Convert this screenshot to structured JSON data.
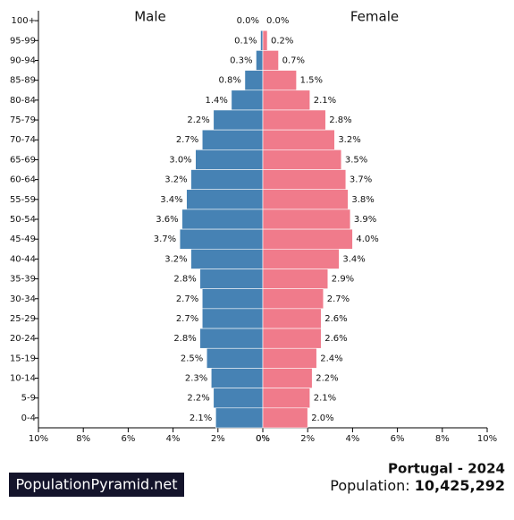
{
  "chart_data": {
    "type": "pyramid",
    "title": "Portugal - 2024",
    "population_label": "Population:",
    "population": "10,425,292",
    "brand": "PopulationPyramid.net",
    "categories": [
      "100+",
      "95-99",
      "90-94",
      "85-89",
      "80-84",
      "75-79",
      "70-74",
      "65-69",
      "60-64",
      "55-59",
      "50-54",
      "45-49",
      "40-44",
      "35-39",
      "30-34",
      "25-29",
      "20-24",
      "15-19",
      "10-14",
      "5-9",
      "0-4"
    ],
    "series": [
      {
        "name": "Male",
        "color": "#4682b4",
        "side": "left",
        "values": [
          0.0,
          0.1,
          0.3,
          0.8,
          1.4,
          2.2,
          2.7,
          3.0,
          3.2,
          3.4,
          3.6,
          3.7,
          3.2,
          2.8,
          2.7,
          2.7,
          2.8,
          2.5,
          2.3,
          2.2,
          2.1
        ],
        "value_labels": [
          "0.0%",
          "0.1%",
          "0.3%",
          "0.8%",
          "1.4%",
          "2.2%",
          "2.7%",
          "3.0%",
          "3.2%",
          "3.4%",
          "3.6%",
          "3.7%",
          "3.2%",
          "2.8%",
          "2.7%",
          "2.7%",
          "2.8%",
          "2.5%",
          "2.3%",
          "2.2%",
          "2.1%"
        ]
      },
      {
        "name": "Female",
        "color": "#f07b8b",
        "side": "right",
        "values": [
          0.0,
          0.2,
          0.7,
          1.5,
          2.1,
          2.8,
          3.2,
          3.5,
          3.7,
          3.8,
          3.9,
          4.0,
          3.4,
          2.9,
          2.7,
          2.6,
          2.6,
          2.4,
          2.2,
          2.1,
          2.0
        ],
        "value_labels": [
          "0.0%",
          "0.2%",
          "0.7%",
          "1.5%",
          "2.1%",
          "2.8%",
          "3.2%",
          "3.5%",
          "3.7%",
          "3.8%",
          "3.9%",
          "4.0%",
          "3.4%",
          "2.9%",
          "2.7%",
          "2.6%",
          "2.6%",
          "2.4%",
          "2.2%",
          "2.1%",
          "2.0%"
        ]
      }
    ],
    "xlim": [
      0,
      10
    ],
    "xticks_left": [
      {
        "value": 10,
        "label": "10%"
      },
      {
        "value": 8,
        "label": "8%"
      },
      {
        "value": 6,
        "label": "6%"
      },
      {
        "value": 4,
        "label": "4%"
      },
      {
        "value": 2,
        "label": "2%"
      },
      {
        "value": 0,
        "label": "0%"
      }
    ],
    "xticks_right": [
      {
        "value": 0,
        "label": "0%"
      },
      {
        "value": 2,
        "label": "2%"
      },
      {
        "value": 4,
        "label": "4%"
      },
      {
        "value": 6,
        "label": "6%"
      },
      {
        "value": 8,
        "label": "8%"
      },
      {
        "value": 10,
        "label": "10%"
      }
    ]
  }
}
